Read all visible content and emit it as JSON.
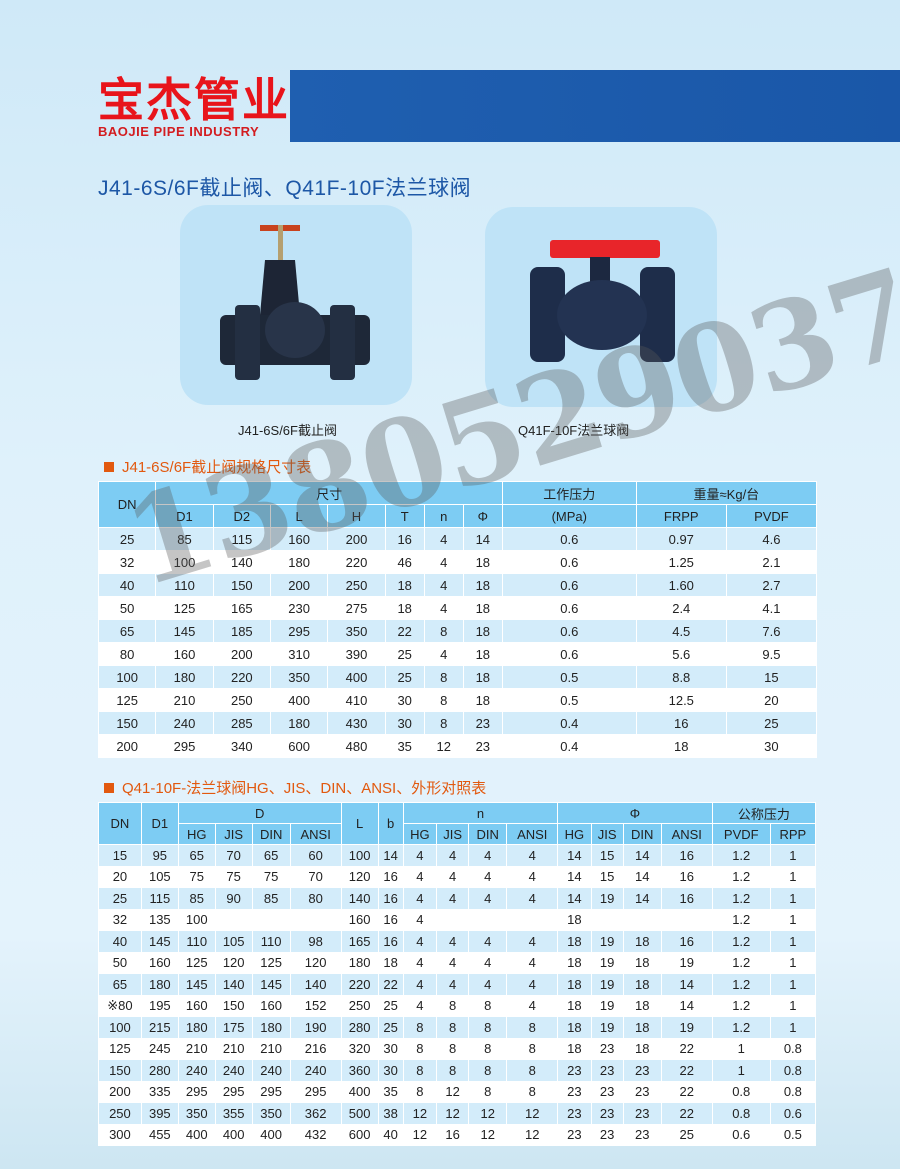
{
  "brand": {
    "name_cn": "宝杰管业",
    "name_en": "BAOJIE PIPE INDUSTRY",
    "accent": "#e8141b",
    "bar_color": "#1f5fb0"
  },
  "page_title": "J41-6S/6F截止阀、Q41F-10F法兰球阀",
  "products": [
    {
      "caption": "J41-6S/6F截止阀"
    },
    {
      "caption": "Q41F-10F法兰球阀"
    }
  ],
  "watermark": "13805290379",
  "table1": {
    "title": "J41-6S/6F截止阀规格尺寸表",
    "headers": {
      "dn": "DN",
      "size": "尺寸",
      "pressure": "工作压力",
      "pressure_unit": "(MPa)",
      "weight": "重量≈Kg/台",
      "cols": [
        "D1",
        "D2",
        "L",
        "H",
        "T",
        "n",
        "Φ"
      ],
      "weight_cols": [
        "FRPP",
        "PVDF"
      ]
    },
    "rows": [
      [
        "25",
        "85",
        "115",
        "160",
        "200",
        "16",
        "4",
        "14",
        "0.6",
        "0.97",
        "4.6"
      ],
      [
        "32",
        "100",
        "140",
        "180",
        "220",
        "46",
        "4",
        "18",
        "0.6",
        "1.25",
        "2.1"
      ],
      [
        "40",
        "110",
        "150",
        "200",
        "250",
        "18",
        "4",
        "18",
        "0.6",
        "1.60",
        "2.7"
      ],
      [
        "50",
        "125",
        "165",
        "230",
        "275",
        "18",
        "4",
        "18",
        "0.6",
        "2.4",
        "4.1"
      ],
      [
        "65",
        "145",
        "185",
        "295",
        "350",
        "22",
        "8",
        "18",
        "0.6",
        "4.5",
        "7.6"
      ],
      [
        "80",
        "160",
        "200",
        "310",
        "390",
        "25",
        "4",
        "18",
        "0.6",
        "5.6",
        "9.5"
      ],
      [
        "100",
        "180",
        "220",
        "350",
        "400",
        "25",
        "8",
        "18",
        "0.5",
        "8.8",
        "15"
      ],
      [
        "125",
        "210",
        "250",
        "400",
        "410",
        "30",
        "8",
        "18",
        "0.5",
        "12.5",
        "20"
      ],
      [
        "150",
        "240",
        "285",
        "180",
        "430",
        "30",
        "8",
        "23",
        "0.4",
        "16",
        "25"
      ],
      [
        "200",
        "295",
        "340",
        "600",
        "480",
        "35",
        "12",
        "23",
        "0.4",
        "18",
        "30"
      ]
    ]
  },
  "table2": {
    "title": "Q41-10F-法兰球阀HG、JIS、DIN、ANSI、外形对照表",
    "headers": {
      "dn": "DN",
      "d1": "D1",
      "d": "D",
      "l": "L",
      "b": "b",
      "n": "n",
      "phi": "Φ",
      "pressure": "公称压力",
      "std": [
        "HG",
        "JIS",
        "DIN",
        "ANSI"
      ],
      "pressure_cols": [
        "PVDF",
        "RPP"
      ]
    },
    "rows": [
      [
        "15",
        "95",
        "65",
        "70",
        "65",
        "60",
        "100",
        "14",
        "4",
        "4",
        "4",
        "4",
        "14",
        "15",
        "14",
        "16",
        "1.2",
        "1"
      ],
      [
        "20",
        "105",
        "75",
        "75",
        "75",
        "70",
        "120",
        "16",
        "4",
        "4",
        "4",
        "4",
        "14",
        "15",
        "14",
        "16",
        "1.2",
        "1"
      ],
      [
        "25",
        "115",
        "85",
        "90",
        "85",
        "80",
        "140",
        "16",
        "4",
        "4",
        "4",
        "4",
        "14",
        "19",
        "14",
        "16",
        "1.2",
        "1"
      ],
      [
        "32",
        "135",
        "100",
        "",
        "",
        "",
        "160",
        "16",
        "4",
        "",
        "",
        "",
        "18",
        "",
        "",
        "",
        "1.2",
        "1"
      ],
      [
        "40",
        "145",
        "110",
        "105",
        "110",
        "98",
        "165",
        "16",
        "4",
        "4",
        "4",
        "4",
        "18",
        "19",
        "18",
        "16",
        "1.2",
        "1"
      ],
      [
        "50",
        "160",
        "125",
        "120",
        "125",
        "120",
        "180",
        "18",
        "4",
        "4",
        "4",
        "4",
        "18",
        "19",
        "18",
        "19",
        "1.2",
        "1"
      ],
      [
        "65",
        "180",
        "145",
        "140",
        "145",
        "140",
        "220",
        "22",
        "4",
        "4",
        "4",
        "4",
        "18",
        "19",
        "18",
        "14",
        "1.2",
        "1"
      ],
      [
        "※80",
        "195",
        "160",
        "150",
        "160",
        "152",
        "250",
        "25",
        "4",
        "8",
        "8",
        "4",
        "18",
        "19",
        "18",
        "14",
        "1.2",
        "1"
      ],
      [
        "100",
        "215",
        "180",
        "175",
        "180",
        "190",
        "280",
        "25",
        "8",
        "8",
        "8",
        "8",
        "18",
        "19",
        "18",
        "19",
        "1.2",
        "1"
      ],
      [
        "125",
        "245",
        "210",
        "210",
        "210",
        "216",
        "320",
        "30",
        "8",
        "8",
        "8",
        "8",
        "18",
        "23",
        "18",
        "22",
        "1",
        "0.8"
      ],
      [
        "150",
        "280",
        "240",
        "240",
        "240",
        "240",
        "360",
        "30",
        "8",
        "8",
        "8",
        "8",
        "23",
        "23",
        "23",
        "22",
        "1",
        "0.8"
      ],
      [
        "200",
        "335",
        "295",
        "295",
        "295",
        "295",
        "400",
        "35",
        "8",
        "12",
        "8",
        "8",
        "23",
        "23",
        "23",
        "22",
        "0.8",
        "0.8"
      ],
      [
        "250",
        "395",
        "350",
        "355",
        "350",
        "362",
        "500",
        "38",
        "12",
        "12",
        "12",
        "12",
        "23",
        "23",
        "23",
        "22",
        "0.8",
        "0.6"
      ],
      [
        "300",
        "455",
        "400",
        "400",
        "400",
        "432",
        "600",
        "40",
        "12",
        "16",
        "12",
        "12",
        "23",
        "23",
        "23",
        "25",
        "0.6",
        "0.5"
      ]
    ]
  }
}
